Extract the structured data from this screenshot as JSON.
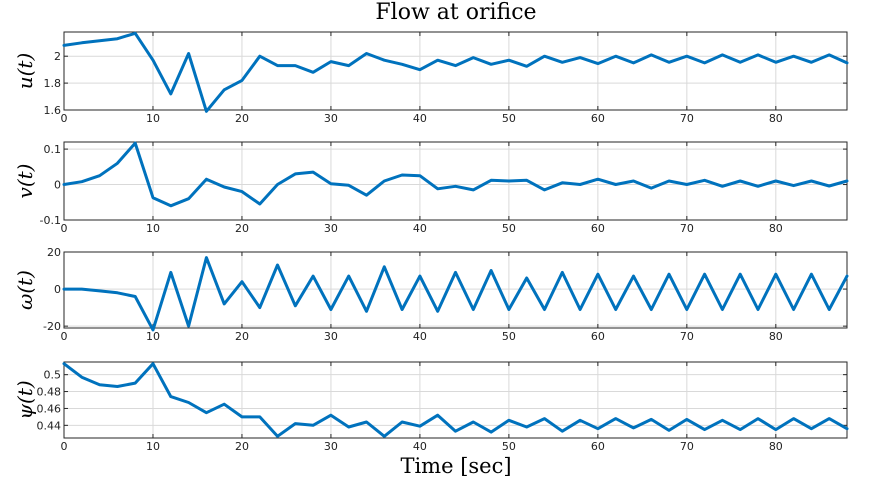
{
  "chart_data": {
    "type": "line",
    "title": "Flow at orifice",
    "xlabel": "Time [sec]",
    "x": [
      0,
      2,
      4,
      6,
      8,
      10,
      12,
      14,
      16,
      18,
      20,
      22,
      24,
      26,
      28,
      30,
      32,
      34,
      36,
      38,
      40,
      42,
      44,
      46,
      48,
      50,
      52,
      54,
      56,
      58,
      60,
      62,
      64,
      66,
      68,
      70,
      72,
      74,
      76,
      78,
      80,
      82,
      84,
      86,
      88
    ],
    "xlim": [
      0,
      88
    ],
    "xticks": [
      0,
      10,
      20,
      30,
      40,
      50,
      60,
      70,
      80
    ],
    "color": "#0072BD",
    "subplots": [
      {
        "ylabel": "u(t)",
        "ylim": [
          1.6,
          2.18
        ],
        "yticks": [
          1.6,
          1.8,
          2.0
        ],
        "yticklabels": [
          "1.6",
          "1.8",
          "2"
        ],
        "values": [
          2.08,
          2.1,
          2.115,
          2.13,
          2.17,
          1.97,
          1.72,
          2.02,
          1.59,
          1.75,
          1.82,
          2.0,
          1.93,
          1.93,
          1.88,
          1.96,
          1.93,
          2.02,
          1.97,
          1.94,
          1.9,
          1.97,
          1.93,
          1.99,
          1.94,
          1.97,
          1.925,
          2.0,
          1.955,
          1.99,
          1.945,
          2.0,
          1.95,
          2.01,
          1.955,
          2.0,
          1.95,
          2.01,
          1.955,
          2.01,
          1.955,
          2.0,
          1.955,
          2.01,
          1.95
        ]
      },
      {
        "ylabel": "v(t)",
        "ylim": [
          -0.1,
          0.12
        ],
        "yticks": [
          -0.1,
          0,
          0.1
        ],
        "yticklabels": [
          "-0.1",
          "0",
          "0.1"
        ],
        "values": [
          0.0,
          0.008,
          0.025,
          0.06,
          0.117,
          -0.037,
          -0.06,
          -0.04,
          0.015,
          -0.007,
          -0.02,
          -0.055,
          0.0,
          0.03,
          0.035,
          0.002,
          -0.002,
          -0.03,
          0.01,
          0.027,
          0.025,
          -0.012,
          -0.005,
          -0.015,
          0.012,
          0.01,
          0.012,
          -0.015,
          0.005,
          0.0,
          0.015,
          0.0,
          0.01,
          -0.01,
          0.01,
          0.0,
          0.012,
          -0.005,
          0.01,
          -0.005,
          0.01,
          -0.003,
          0.01,
          -0.004,
          0.01
        ]
      },
      {
        "ylabel": "ω(t)",
        "ylim": [
          -21,
          20
        ],
        "yticks": [
          -20,
          0,
          20
        ],
        "yticklabels": [
          "-20",
          "0",
          "20"
        ],
        "values": [
          0,
          0,
          -1,
          -2,
          -4,
          -22,
          9,
          -20,
          17,
          -8,
          4,
          -10,
          13,
          -9,
          7,
          -11,
          7,
          -12,
          12,
          -11,
          7,
          -12,
          9,
          -11,
          10,
          -11,
          6,
          -11,
          9,
          -11,
          8,
          -11,
          7,
          -11,
          8,
          -11,
          8,
          -11,
          8,
          -11,
          8,
          -11,
          8,
          -11,
          7
        ]
      },
      {
        "ylabel": "ψ(t)",
        "ylim": [
          0.425,
          0.515
        ],
        "yticks": [
          0.44,
          0.46,
          0.48,
          0.5
        ],
        "yticklabels": [
          "0.44",
          "0.46",
          "0.48",
          "0.5"
        ],
        "values": [
          0.513,
          0.497,
          0.488,
          0.486,
          0.49,
          0.513,
          0.474,
          0.467,
          0.455,
          0.465,
          0.45,
          0.45,
          0.427,
          0.442,
          0.44,
          0.452,
          0.438,
          0.444,
          0.427,
          0.444,
          0.439,
          0.452,
          0.433,
          0.444,
          0.432,
          0.446,
          0.438,
          0.448,
          0.433,
          0.446,
          0.436,
          0.448,
          0.437,
          0.447,
          0.434,
          0.447,
          0.435,
          0.446,
          0.435,
          0.448,
          0.435,
          0.448,
          0.436,
          0.448,
          0.436
        ]
      }
    ]
  }
}
